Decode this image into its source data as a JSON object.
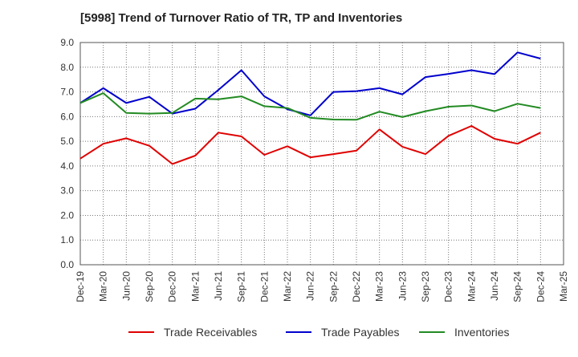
{
  "chart_data": {
    "type": "line",
    "title": "[5998]  Trend of Turnover Ratio of TR, TP and Inventories",
    "xlabel": "",
    "ylabel": "",
    "ylim": [
      0,
      9
    ],
    "yticks": [
      "0.0",
      "1.0",
      "2.0",
      "3.0",
      "4.0",
      "5.0",
      "6.0",
      "7.0",
      "8.0",
      "9.0"
    ],
    "categories": [
      "Dec-19",
      "Mar-20",
      "Jun-20",
      "Sep-20",
      "Dec-20",
      "Mar-21",
      "Jun-21",
      "Sep-21",
      "Dec-21",
      "Mar-22",
      "Jun-22",
      "Sep-22",
      "Dec-22",
      "Mar-23",
      "Jun-23",
      "Sep-23",
      "Dec-23",
      "Mar-24",
      "Jun-24",
      "Sep-24",
      "Dec-24",
      "Mar-25"
    ],
    "grid": true,
    "legend_position": "bottom",
    "series": [
      {
        "name": "Trade Receivables",
        "color": "#e00000",
        "values": [
          4.3,
          4.9,
          5.12,
          4.82,
          4.08,
          4.42,
          5.35,
          5.2,
          4.45,
          4.8,
          4.35,
          4.48,
          4.62,
          5.48,
          4.78,
          4.48,
          5.22,
          5.62,
          5.1,
          4.9,
          5.35,
          null
        ]
      },
      {
        "name": "Trade Payables",
        "color": "#0000cc",
        "values": [
          6.55,
          7.15,
          6.55,
          6.8,
          6.12,
          6.32,
          7.08,
          7.88,
          6.82,
          6.3,
          6.05,
          7.0,
          7.03,
          7.15,
          6.9,
          7.6,
          7.73,
          7.88,
          7.72,
          8.6,
          8.35,
          null
        ]
      },
      {
        "name": "Inventories",
        "color": "#228b22",
        "values": [
          6.55,
          6.95,
          6.15,
          6.12,
          6.15,
          6.73,
          6.7,
          6.82,
          6.42,
          6.35,
          5.95,
          5.88,
          5.87,
          6.2,
          5.98,
          6.22,
          6.4,
          6.45,
          6.22,
          6.52,
          6.35,
          null
        ]
      }
    ]
  }
}
